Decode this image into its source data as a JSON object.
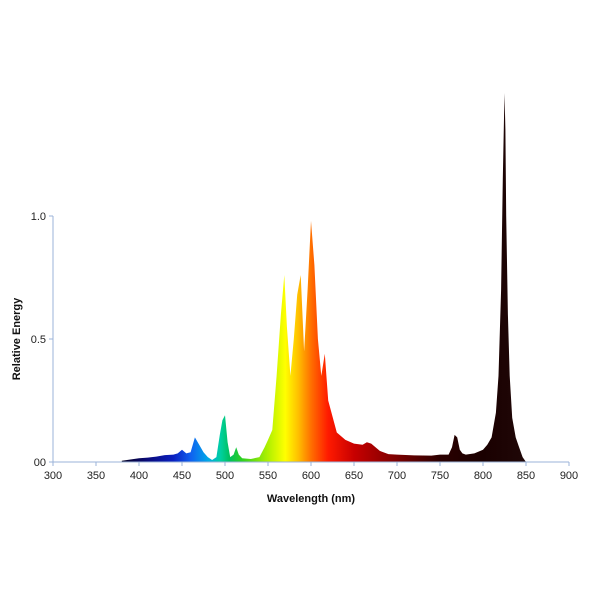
{
  "chart_data": {
    "type": "area",
    "title": "",
    "xlabel": "Wavelength (nm)",
    "ylabel": "Relative Energy",
    "xlim": [
      300,
      900
    ],
    "ylim": [
      0,
      1.0
    ],
    "grid": false,
    "x_ticks": [
      "300",
      "350",
      "400",
      "450",
      "500",
      "550",
      "600",
      "650",
      "700",
      "750",
      "800",
      "850",
      "900"
    ],
    "y_ticks": [
      "00",
      "0.5",
      "1.0"
    ],
    "fill": "spectral-gradient",
    "series": [
      {
        "x": [
          380,
          390,
          400,
          410,
          420,
          430,
          440,
          445,
          450,
          455,
          460,
          465,
          470,
          475,
          480,
          485,
          490,
          494,
          497,
          500,
          503,
          506,
          510,
          513,
          516,
          520,
          530,
          540,
          546,
          550,
          555,
          560,
          565,
          569,
          572,
          576,
          580,
          584,
          588,
          592,
          596,
          600,
          604,
          608,
          612,
          616,
          620,
          630,
          640,
          650,
          660,
          665,
          670,
          675,
          680,
          690,
          700,
          720,
          740,
          750,
          760,
          764,
          767,
          770,
          773,
          776,
          780,
          790,
          800,
          805,
          810,
          815,
          818,
          821,
          823,
          825,
          826,
          827,
          829,
          831,
          834,
          838,
          842,
          846,
          850
        ],
        "y": [
          0.005,
          0.01,
          0.015,
          0.018,
          0.022,
          0.028,
          0.03,
          0.035,
          0.05,
          0.035,
          0.04,
          0.1,
          0.07,
          0.04,
          0.02,
          0.008,
          0.02,
          0.11,
          0.17,
          0.19,
          0.08,
          0.02,
          0.03,
          0.06,
          0.03,
          0.015,
          0.012,
          0.02,
          0.06,
          0.09,
          0.13,
          0.35,
          0.6,
          0.76,
          0.55,
          0.35,
          0.5,
          0.68,
          0.76,
          0.45,
          0.7,
          0.98,
          0.8,
          0.5,
          0.35,
          0.44,
          0.25,
          0.12,
          0.09,
          0.075,
          0.07,
          0.08,
          0.075,
          0.06,
          0.045,
          0.032,
          0.03,
          0.027,
          0.026,
          0.03,
          0.03,
          0.06,
          0.11,
          0.1,
          0.05,
          0.035,
          0.03,
          0.035,
          0.05,
          0.07,
          0.1,
          0.2,
          0.35,
          0.7,
          1.15,
          1.5,
          1.35,
          1.0,
          0.6,
          0.35,
          0.18,
          0.1,
          0.06,
          0.02,
          0.0
        ]
      }
    ]
  }
}
